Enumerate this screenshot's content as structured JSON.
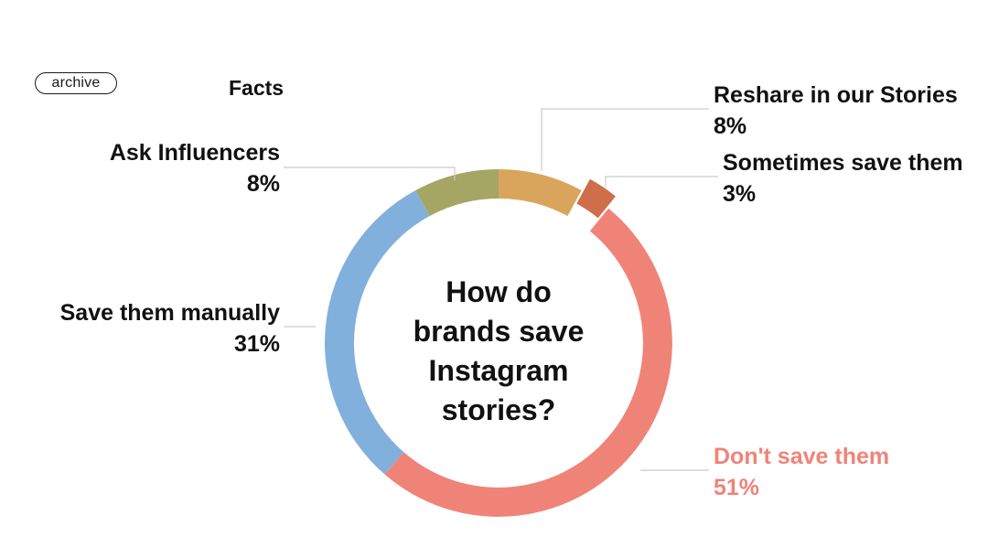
{
  "header": {
    "logo_text": "archive",
    "tag": "Facts"
  },
  "chart_data": {
    "type": "pie",
    "style": "donut",
    "title": "How do brands save Instagram stories?",
    "title_lines": [
      "How do",
      "brands save",
      "Instagram",
      "stories?"
    ],
    "unit": "%",
    "slices": [
      {
        "label": "Reshare in our Stories",
        "value": 8,
        "value_text": "8%",
        "color": "#d9a55c",
        "label_color": "#111111",
        "exploded": false
      },
      {
        "label": "Sometimes save them",
        "value": 3,
        "value_text": "3%",
        "color": "#cf6e4a",
        "label_color": "#111111",
        "exploded": true
      },
      {
        "label": "Don't save them",
        "value": 51,
        "value_text": "51%",
        "color": "#f08378",
        "label_color": "#f08378",
        "exploded": false
      },
      {
        "label": "Save them manually",
        "value": 31,
        "value_text": "31%",
        "color": "#82b0dc",
        "label_color": "#111111",
        "exploded": false
      },
      {
        "label": "Ask Influencers",
        "value": 8,
        "value_text": "8%",
        "color": "#a5a564",
        "label_color": "#111111",
        "exploded": false
      }
    ],
    "legend": "none",
    "leader_line_color": "#cccccc"
  }
}
